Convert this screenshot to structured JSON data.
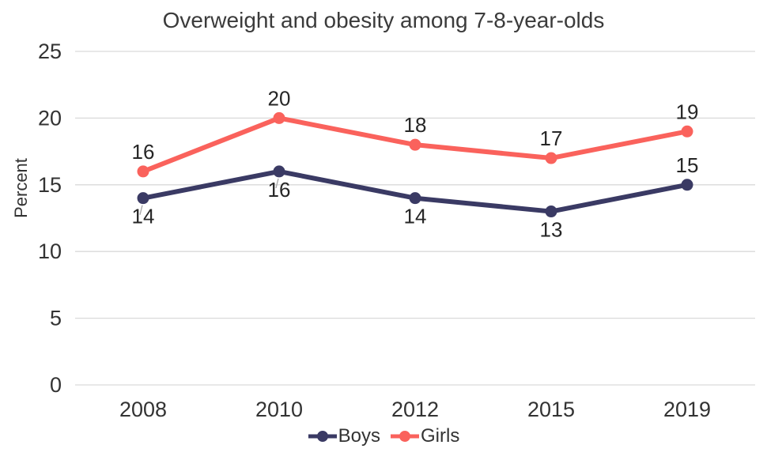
{
  "chart_data": {
    "type": "line",
    "title": "Overweight and obesity among 7-8-year-olds",
    "categories": [
      "2008",
      "2010",
      "2012",
      "2015",
      "2019"
    ],
    "series": [
      {
        "name": "Boys",
        "color": "#3A3A64",
        "values": [
          14,
          16,
          14,
          13,
          15
        ],
        "label_positions": [
          "below",
          "below",
          "below",
          "below",
          "above"
        ]
      },
      {
        "name": "Girls",
        "color": "#FA625C",
        "values": [
          16,
          20,
          18,
          17,
          19
        ],
        "label_positions": [
          "above",
          "above",
          "above",
          "above",
          "above"
        ]
      }
    ],
    "xlabel": "",
    "ylabel": "Percent",
    "ylim": [
      0,
      25
    ],
    "yticks": [
      0,
      5,
      10,
      15,
      20,
      25
    ],
    "grid": true,
    "legend_position": "bottom",
    "colors": {
      "gridline": "#D9D9D9",
      "axis_text": "#333333",
      "data_label": "#262626",
      "leader_line": "#A6A6A6"
    },
    "callouts": [
      {
        "series": 0,
        "point": 0
      },
      {
        "series": 0,
        "point": 1
      }
    ]
  }
}
